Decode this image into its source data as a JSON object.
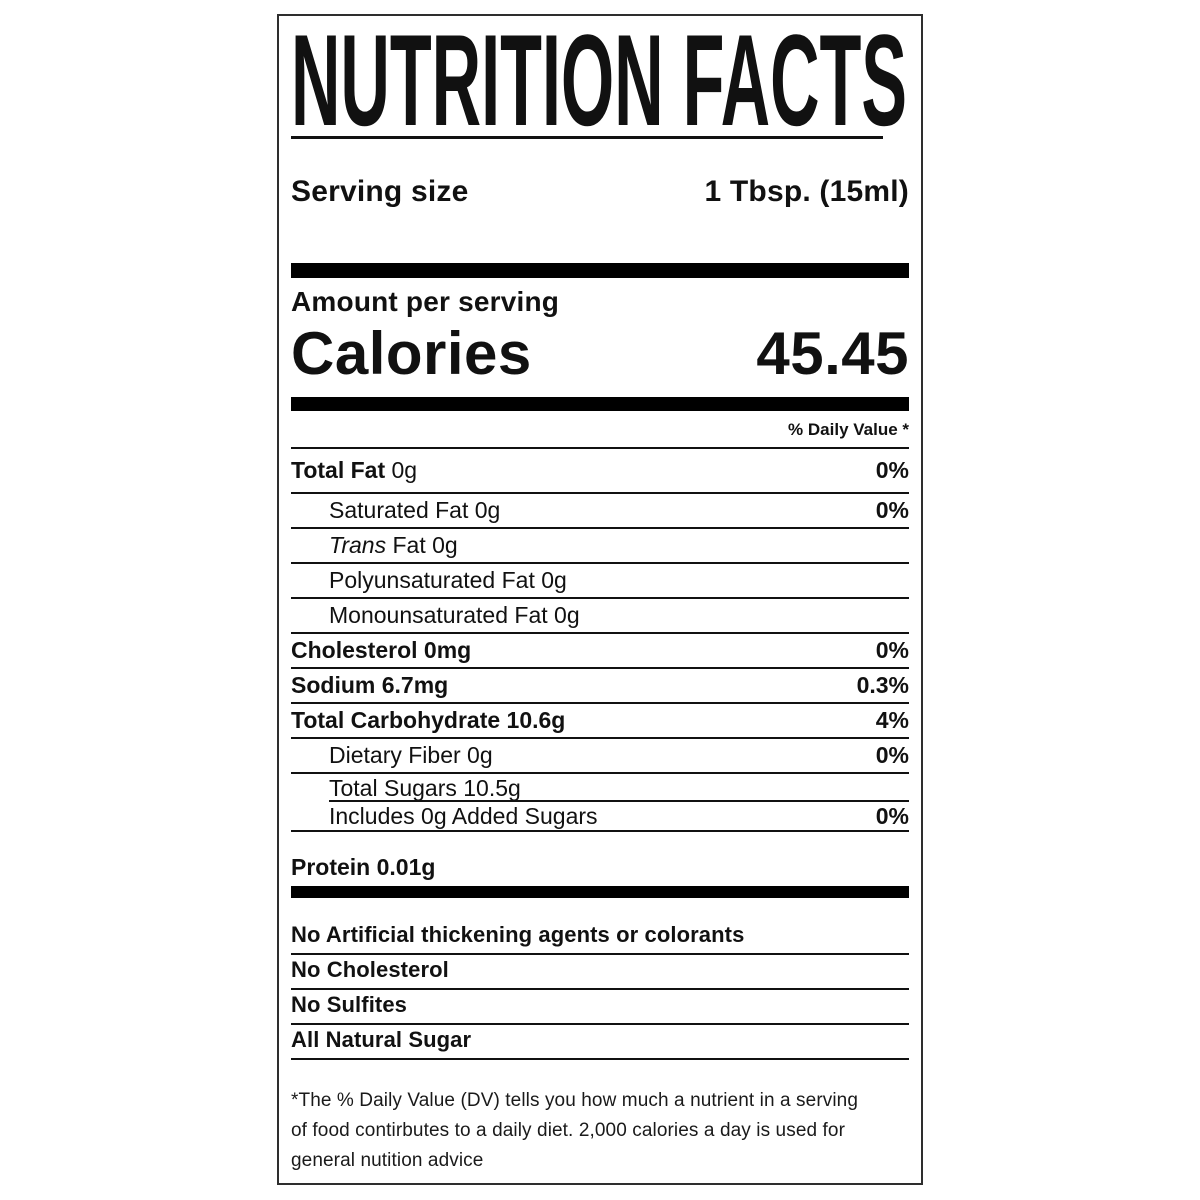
{
  "title": "NUTRITION FACTS",
  "serving": {
    "label": "Serving size",
    "value": "1 Tbsp. (15ml)"
  },
  "amount_per_serving_label": "Amount per serving",
  "calories": {
    "label": "Calories",
    "value": "45.45"
  },
  "daily_value_header": "% Daily Value *",
  "nutrients": [
    {
      "bold": "Total Fat",
      "italic": "",
      "text": " 0g",
      "value": "0%"
    },
    {
      "bold": "",
      "italic": "",
      "text": "Saturated Fat 0g",
      "value": "0%"
    },
    {
      "bold": "",
      "italic": "Trans",
      "text": " Fat 0g",
      "value": ""
    },
    {
      "bold": "",
      "italic": "",
      "text": "Polyunsaturated Fat 0g",
      "value": ""
    },
    {
      "bold": "",
      "italic": "",
      "text": "Monounsaturated Fat 0g",
      "value": ""
    },
    {
      "bold": "Cholesterol 0mg",
      "italic": "",
      "text": "",
      "value": "0%"
    },
    {
      "bold": "Sodium 6.7mg",
      "italic": "",
      "text": "",
      "value": "0.3%"
    },
    {
      "bold": "Total Carbohydrate 10.6g",
      "italic": "",
      "text": "",
      "value": "4%"
    },
    {
      "bold": "",
      "italic": "",
      "text": "Dietary Fiber 0g",
      "value": "0%"
    },
    {
      "bold": "",
      "italic": "",
      "text": "Total Sugars 10.5g",
      "value": ""
    },
    {
      "bold": "",
      "italic": "",
      "text": "Includes 0g Added Sugars",
      "value": "0%"
    }
  ],
  "protein": {
    "label": "Protein 0.01g"
  },
  "claims": [
    "No Artificial thickening agents or colorants",
    "No Cholesterol",
    "No Sulfites",
    "All Natural Sugar"
  ],
  "footnote": {
    "lines": [
      "*The % Daily Value (DV) tells you how much a nutrient in a serving",
      "of food contirbutes to a daily diet. 2,000 calories a day is used for",
      "general nutition advice"
    ]
  },
  "colors": {
    "text": "#111111",
    "bar": "#000000",
    "border": "#2e2e2e"
  }
}
